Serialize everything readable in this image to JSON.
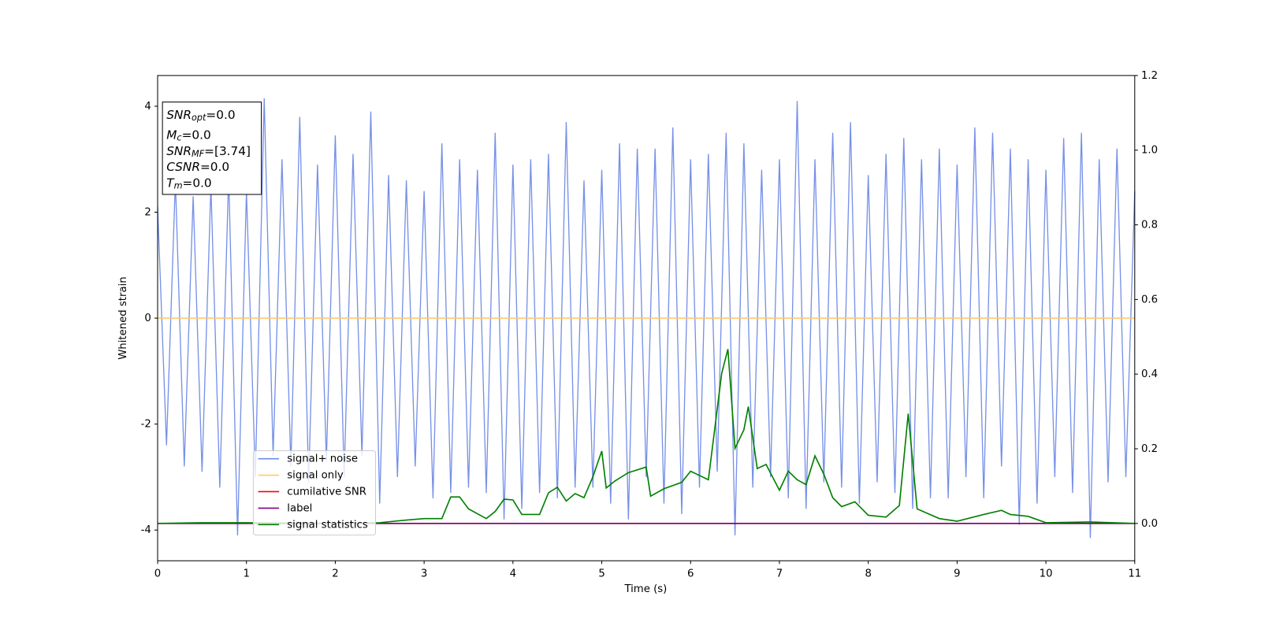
{
  "chart_data": {
    "type": "line",
    "xlabel": "Time (s)",
    "ylabel": "Whitened strain",
    "xlim": [
      0,
      11
    ],
    "xticks": [
      0,
      1,
      2,
      3,
      4,
      5,
      6,
      7,
      8,
      9,
      10,
      11
    ],
    "ylim": [
      -4.58,
      4.58
    ],
    "yticks": [
      -4,
      -2,
      0,
      2,
      4
    ],
    "y2lim": [
      -0.1,
      1.2
    ],
    "y2ticks": [
      {
        "value": 0,
        "label": "0.0"
      },
      {
        "value": 0.2,
        "label": "0.2"
      },
      {
        "value": 0.4,
        "label": "0.4"
      },
      {
        "value": 0.6,
        "label": "0.6"
      },
      {
        "value": 0.8,
        "label": "0.8"
      },
      {
        "value": 1.0,
        "label": "1.0"
      },
      {
        "value": 1.2,
        "label": "1.2"
      }
    ],
    "legend": "lower left",
    "annotation": [
      {
        "base": "SNR",
        "sub": "opt",
        "rest": "=0.0"
      },
      {
        "base": "M",
        "sub": "c",
        "rest": "=0.0"
      },
      {
        "base": "SNR",
        "sub": "MF",
        "rest": "=[3.74]"
      },
      {
        "base": "CSNR",
        "rest": "=0.0"
      },
      {
        "base": "T",
        "sub": "m",
        "rest": "=0.0"
      }
    ],
    "series": [
      {
        "name": "signal+ noise",
        "color": "#6f8ae6",
        "x": [
          0,
          0.1,
          0.2,
          0.3,
          0.4,
          0.5,
          0.6,
          0.7,
          0.8,
          0.9,
          1,
          1.1,
          1.2,
          1.3,
          1.4,
          1.5,
          1.6,
          1.7,
          1.8,
          1.9,
          2,
          2.1,
          2.2,
          2.3,
          2.4,
          2.5,
          2.6,
          2.7,
          2.8,
          2.9,
          3,
          3.1,
          3.2,
          3.3,
          3.4,
          3.5,
          3.6,
          3.7,
          3.8,
          3.9,
          4,
          4.1,
          4.2,
          4.3,
          4.4,
          4.5,
          4.6,
          4.7,
          4.8,
          4.9,
          5,
          5.1,
          5.2,
          5.3,
          5.4,
          5.5,
          5.6,
          5.7,
          5.8,
          5.9,
          6,
          6.1,
          6.2,
          6.3,
          6.4,
          6.5,
          6.6,
          6.7,
          6.8,
          6.9,
          7,
          7.1,
          7.2,
          7.3,
          7.4,
          7.5,
          7.6,
          7.7,
          7.8,
          7.9,
          8,
          8.1,
          8.2,
          8.3,
          8.4,
          8.5,
          8.6,
          8.7,
          8.8,
          8.9,
          9,
          9.1,
          9.2,
          9.3,
          9.4,
          9.5,
          9.6,
          9.7,
          9.8,
          9.9,
          10,
          10.1,
          10.2,
          10.3,
          10.4,
          10.5,
          10.6,
          10.7,
          10.8,
          10.9,
          11
        ],
        "values": [
          2.1,
          -2.4,
          2.6,
          -2.8,
          2.3,
          -2.9,
          2.5,
          -3.2,
          2.7,
          -4.1,
          2.4,
          -3.0,
          4.15,
          -2.6,
          3.0,
          -2.8,
          3.8,
          -3.1,
          2.9,
          -2.7,
          3.45,
          -3.0,
          3.1,
          -2.6,
          3.9,
          -3.5,
          2.7,
          -3.0,
          2.6,
          -2.8,
          2.4,
          -3.4,
          3.3,
          -3.3,
          3.0,
          -3.2,
          2.8,
          -3.3,
          3.5,
          -3.8,
          2.9,
          -3.6,
          3.0,
          -3.3,
          3.1,
          -3.4,
          3.7,
          -3.2,
          2.6,
          -3.2,
          2.8,
          -3.5,
          3.3,
          -3.8,
          3.2,
          -3.0,
          3.2,
          -3.5,
          3.6,
          -3.7,
          3.0,
          -3.2,
          3.1,
          -2.9,
          3.5,
          -4.1,
          3.3,
          -3.2,
          2.8,
          -3.0,
          3.0,
          -3.4,
          4.1,
          -3.6,
          3.0,
          -3.1,
          3.5,
          -3.2,
          3.7,
          -3.5,
          2.7,
          -3.1,
          3.1,
          -3.3,
          3.4,
          -3.6,
          3.0,
          -3.4,
          3.2,
          -3.4,
          2.9,
          -3.0,
          3.6,
          -3.4,
          3.5,
          -2.8,
          3.2,
          -3.9,
          3.0,
          -3.5,
          2.8,
          -3.0,
          3.4,
          -3.3,
          3.5,
          -4.15,
          3.0,
          -3.1,
          3.2,
          -3.0,
          2.4
        ]
      },
      {
        "name": "signal only",
        "color": "#ffc870",
        "x": [
          0,
          11
        ],
        "values": [
          0,
          0
        ]
      },
      {
        "name": "cumilative SNR",
        "color": "#ff0000",
        "axis": "y2",
        "x": [
          0,
          11
        ],
        "values": [
          0,
          0
        ]
      },
      {
        "name": "label",
        "color": "#800080",
        "axis": "y2",
        "x": [
          0,
          11
        ],
        "values": [
          0,
          0
        ]
      },
      {
        "name": "signal statistics",
        "color": "#008000",
        "axis": "y2",
        "x": [
          0,
          0.5,
          1,
          2,
          2.5,
          2.8,
          3.0,
          3.2,
          3.3,
          3.4,
          3.5,
          3.7,
          3.8,
          3.9,
          4.0,
          4.1,
          4.3,
          4.4,
          4.5,
          4.6,
          4.7,
          4.8,
          4.9,
          5.0,
          5.05,
          5.15,
          5.3,
          5.5,
          5.55,
          5.7,
          5.9,
          6.0,
          6.2,
          6.35,
          6.42,
          6.5,
          6.6,
          6.65,
          6.75,
          6.85,
          7.0,
          7.1,
          7.2,
          7.3,
          7.4,
          7.5,
          7.6,
          7.7,
          7.85,
          8.0,
          8.2,
          8.35,
          8.45,
          8.55,
          8.8,
          9.0,
          9.3,
          9.5,
          9.6,
          9.8,
          10.0,
          10.5,
          11
        ],
        "values": [
          0,
          0.002,
          0.002,
          0,
          0.002,
          0.009,
          0.013,
          0.013,
          0.071,
          0.071,
          0.039,
          0.013,
          0.032,
          0.065,
          0.063,
          0.024,
          0.024,
          0.082,
          0.097,
          0.06,
          0.08,
          0.069,
          0.125,
          0.194,
          0.095,
          0.114,
          0.136,
          0.151,
          0.073,
          0.093,
          0.11,
          0.14,
          0.117,
          0.402,
          0.467,
          0.201,
          0.251,
          0.313,
          0.147,
          0.158,
          0.089,
          0.14,
          0.117,
          0.104,
          0.181,
          0.132,
          0.069,
          0.045,
          0.058,
          0.022,
          0.017,
          0.048,
          0.294,
          0.039,
          0.013,
          0.006,
          0.024,
          0.035,
          0.024,
          0.019,
          0.002,
          0.004,
          0
        ]
      }
    ]
  }
}
